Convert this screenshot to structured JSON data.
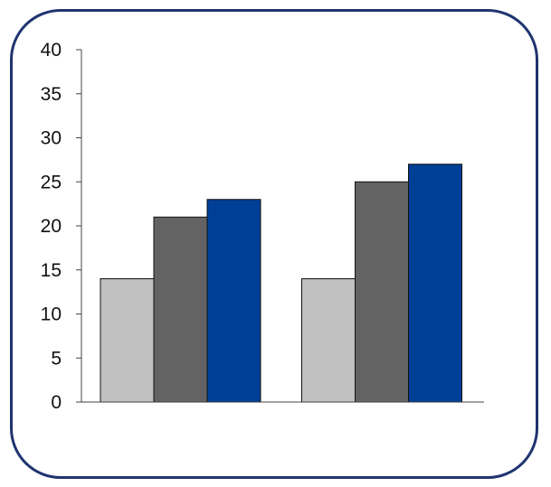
{
  "chart_data": {
    "type": "bar",
    "categories": [
      "",
      ""
    ],
    "series": [
      {
        "values": [
          14,
          14
        ]
      },
      {
        "values": [
          21,
          25
        ]
      },
      {
        "values": [
          23,
          27
        ]
      }
    ],
    "ylim": [
      0,
      40
    ],
    "yticks": [
      0,
      5,
      10,
      15,
      20,
      25,
      30,
      35,
      40
    ],
    "grid": false,
    "legend": "none",
    "colors": {
      "series": [
        "#c0c0c0",
        "#636363",
        "#003f96"
      ],
      "bar_outline": "#111111",
      "axis": "#444444",
      "frame": "#1f3470"
    }
  }
}
